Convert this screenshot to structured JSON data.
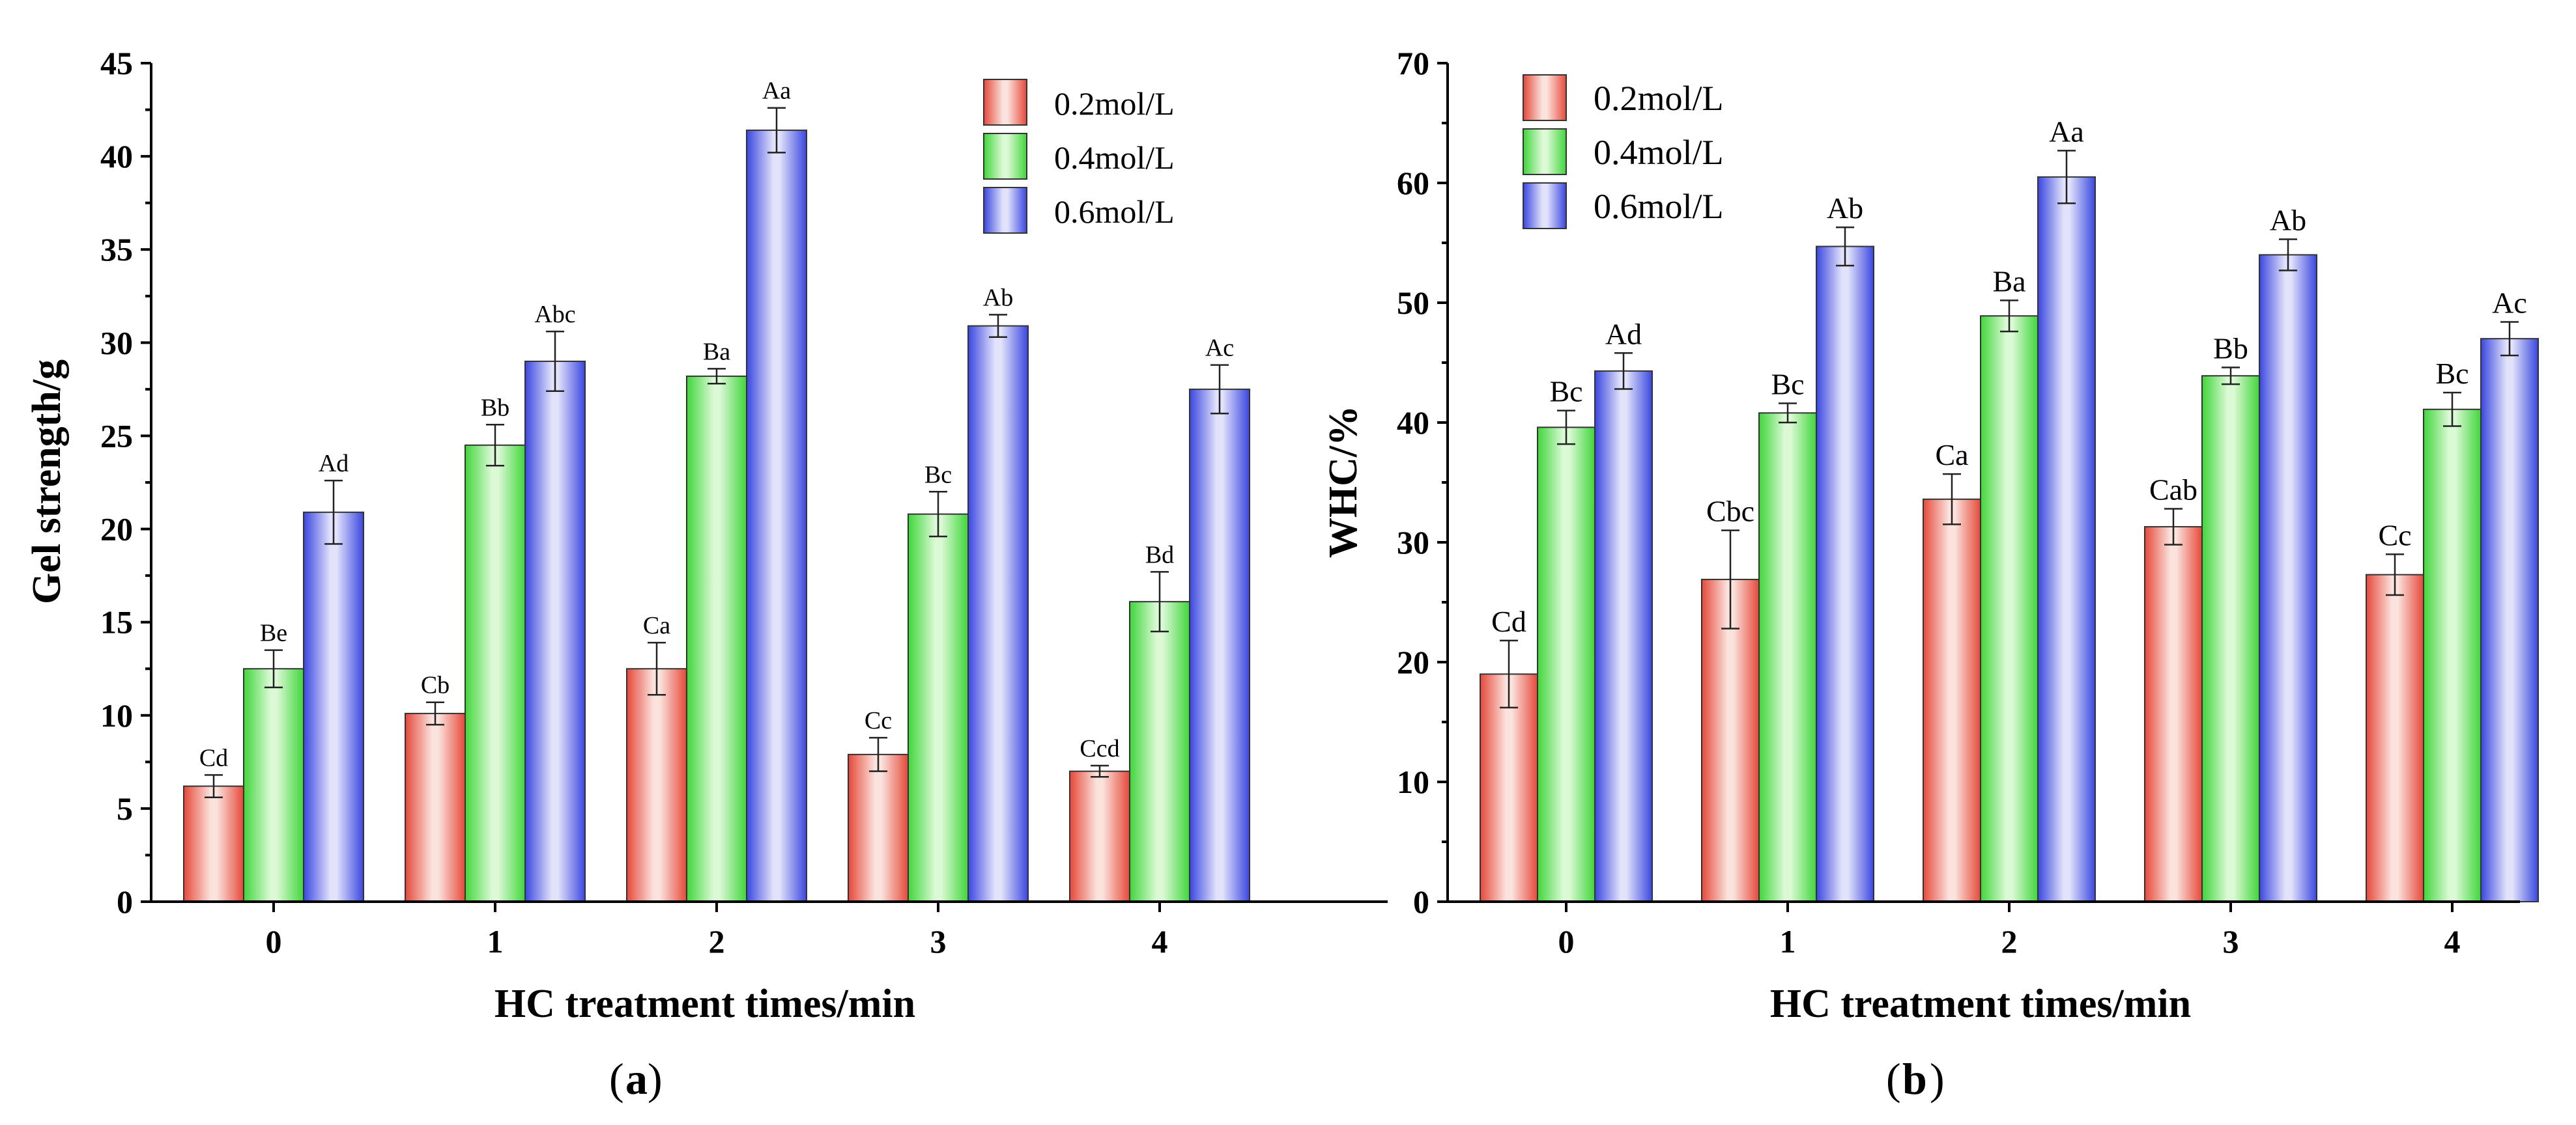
{
  "colors": {
    "red": "#e5483a",
    "green": "#3fd63a",
    "blue": "#3a46e0"
  },
  "chart_data": [
    {
      "type": "bar",
      "panel_label": "a",
      "xlabel": "HC treatment times/min",
      "ylabel": "Gel strength/g",
      "ylim": [
        0,
        45
      ],
      "yticks": [
        0,
        5,
        10,
        15,
        20,
        25,
        30,
        35,
        40,
        45
      ],
      "categories": [
        "0",
        "1",
        "2",
        "3",
        "4"
      ],
      "legend_position": "top-right",
      "series": [
        {
          "name": "0.2mol/L",
          "color": "red",
          "values": [
            6.2,
            10.1,
            12.5,
            7.9,
            7.0
          ],
          "errors": [
            0.6,
            0.6,
            1.4,
            0.9,
            0.3
          ],
          "letters": [
            "Cd",
            "Cb",
            "Ca",
            "Cc",
            "Ccd"
          ]
        },
        {
          "name": "0.4mol/L",
          "color": "green",
          "values": [
            12.5,
            24.5,
            28.2,
            20.8,
            16.1
          ],
          "errors": [
            1.0,
            1.1,
            0.4,
            1.2,
            1.6
          ],
          "letters": [
            "Be",
            "Bb",
            "Ba",
            "Bc",
            "Bd"
          ]
        },
        {
          "name": "0.6mol/L",
          "color": "blue",
          "values": [
            20.9,
            29.0,
            41.4,
            30.9,
            27.5
          ],
          "errors": [
            1.7,
            1.6,
            1.2,
            0.6,
            1.3
          ],
          "letters": [
            "Ad",
            "Abc",
            "Aa",
            "Ab",
            "Ac"
          ]
        }
      ]
    },
    {
      "type": "bar",
      "panel_label": "b",
      "xlabel": "HC treatment times/min",
      "ylabel": "WHC/%",
      "ylim": [
        0,
        70
      ],
      "yticks": [
        0,
        10,
        20,
        30,
        40,
        50,
        60,
        70
      ],
      "categories": [
        "0",
        "1",
        "2",
        "3",
        "4"
      ],
      "legend_position": "top-left",
      "series": [
        {
          "name": "0.2mol/L",
          "color": "red",
          "values": [
            19.0,
            26.9,
            33.6,
            31.3,
            27.3
          ],
          "errors": [
            2.8,
            4.1,
            2.1,
            1.5,
            1.7
          ],
          "letters": [
            "Cd",
            "Cbc",
            "Ca",
            "Cab",
            "Cc"
          ]
        },
        {
          "name": "0.4mol/L",
          "color": "green",
          "values": [
            39.6,
            40.8,
            48.9,
            43.9,
            41.1
          ],
          "errors": [
            1.4,
            0.8,
            1.3,
            0.7,
            1.4
          ],
          "letters": [
            "Bc",
            "Bc",
            "Ba",
            "Bb",
            "Bc"
          ]
        },
        {
          "name": "0.6mol/L",
          "color": "blue",
          "values": [
            44.3,
            54.7,
            60.5,
            54.0,
            47.0
          ],
          "errors": [
            1.5,
            1.6,
            2.2,
            1.3,
            1.4
          ],
          "letters": [
            "Ad",
            "Ab",
            "Aa",
            "Ab",
            "Ac"
          ]
        }
      ]
    }
  ]
}
